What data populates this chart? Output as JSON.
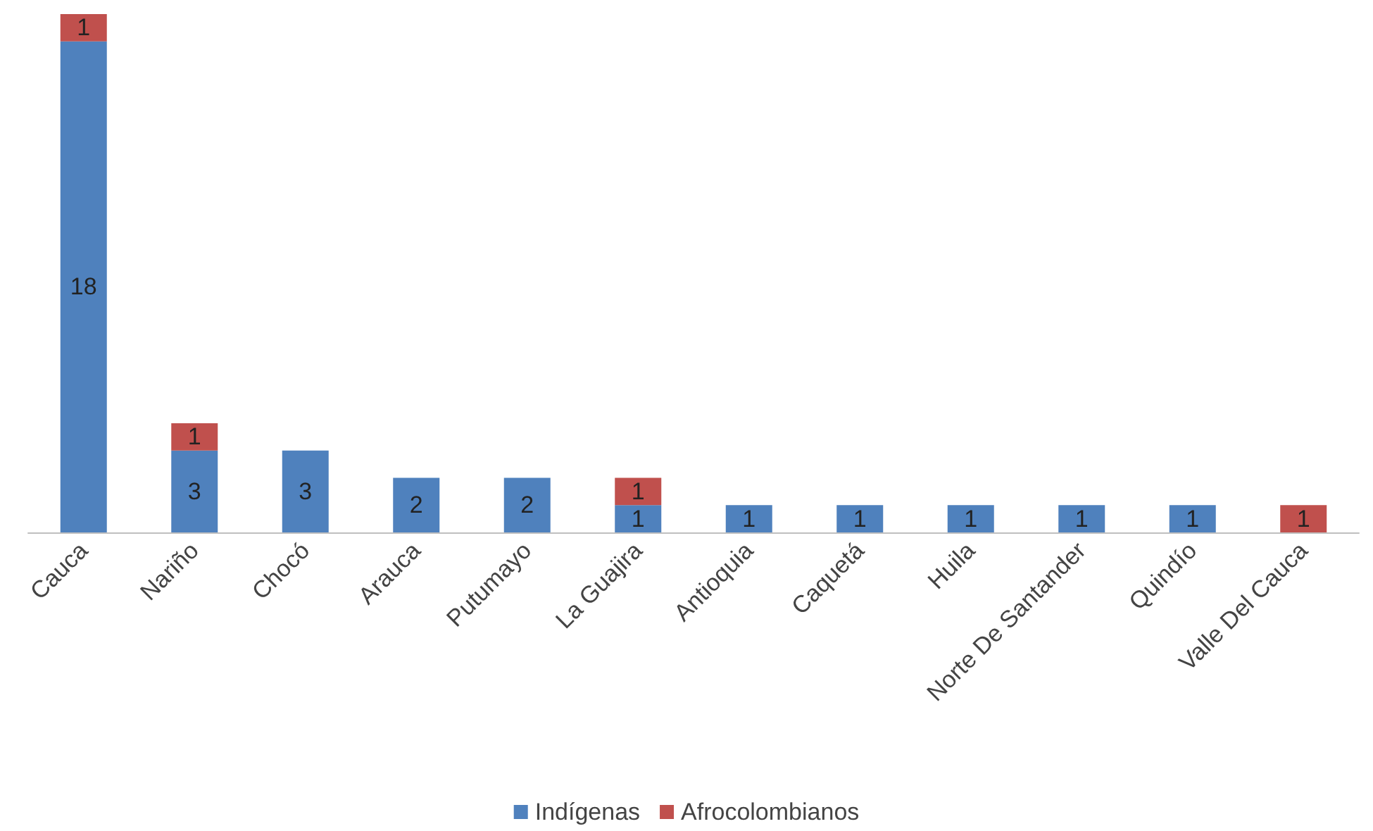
{
  "chart_data": {
    "type": "bar",
    "stacked": true,
    "data_labels": true,
    "legend": "bottom",
    "categories": [
      "Cauca",
      "Nariño",
      "Chocó",
      "Arauca",
      "Putumayo",
      "La Guajira",
      "Antioquia",
      "Caquetá",
      "Huila",
      "Norte De Santander",
      "Quindío",
      "Valle Del Cauca"
    ],
    "series": [
      {
        "name": "Indígenas",
        "color": "#4f81bd",
        "values": [
          18,
          3,
          3,
          2,
          2,
          1,
          1,
          1,
          1,
          1,
          1,
          null
        ]
      },
      {
        "name": "Afrocolombianos",
        "color": "#c0504d",
        "values": [
          1,
          1,
          null,
          null,
          null,
          1,
          null,
          null,
          null,
          null,
          null,
          1
        ]
      }
    ]
  }
}
